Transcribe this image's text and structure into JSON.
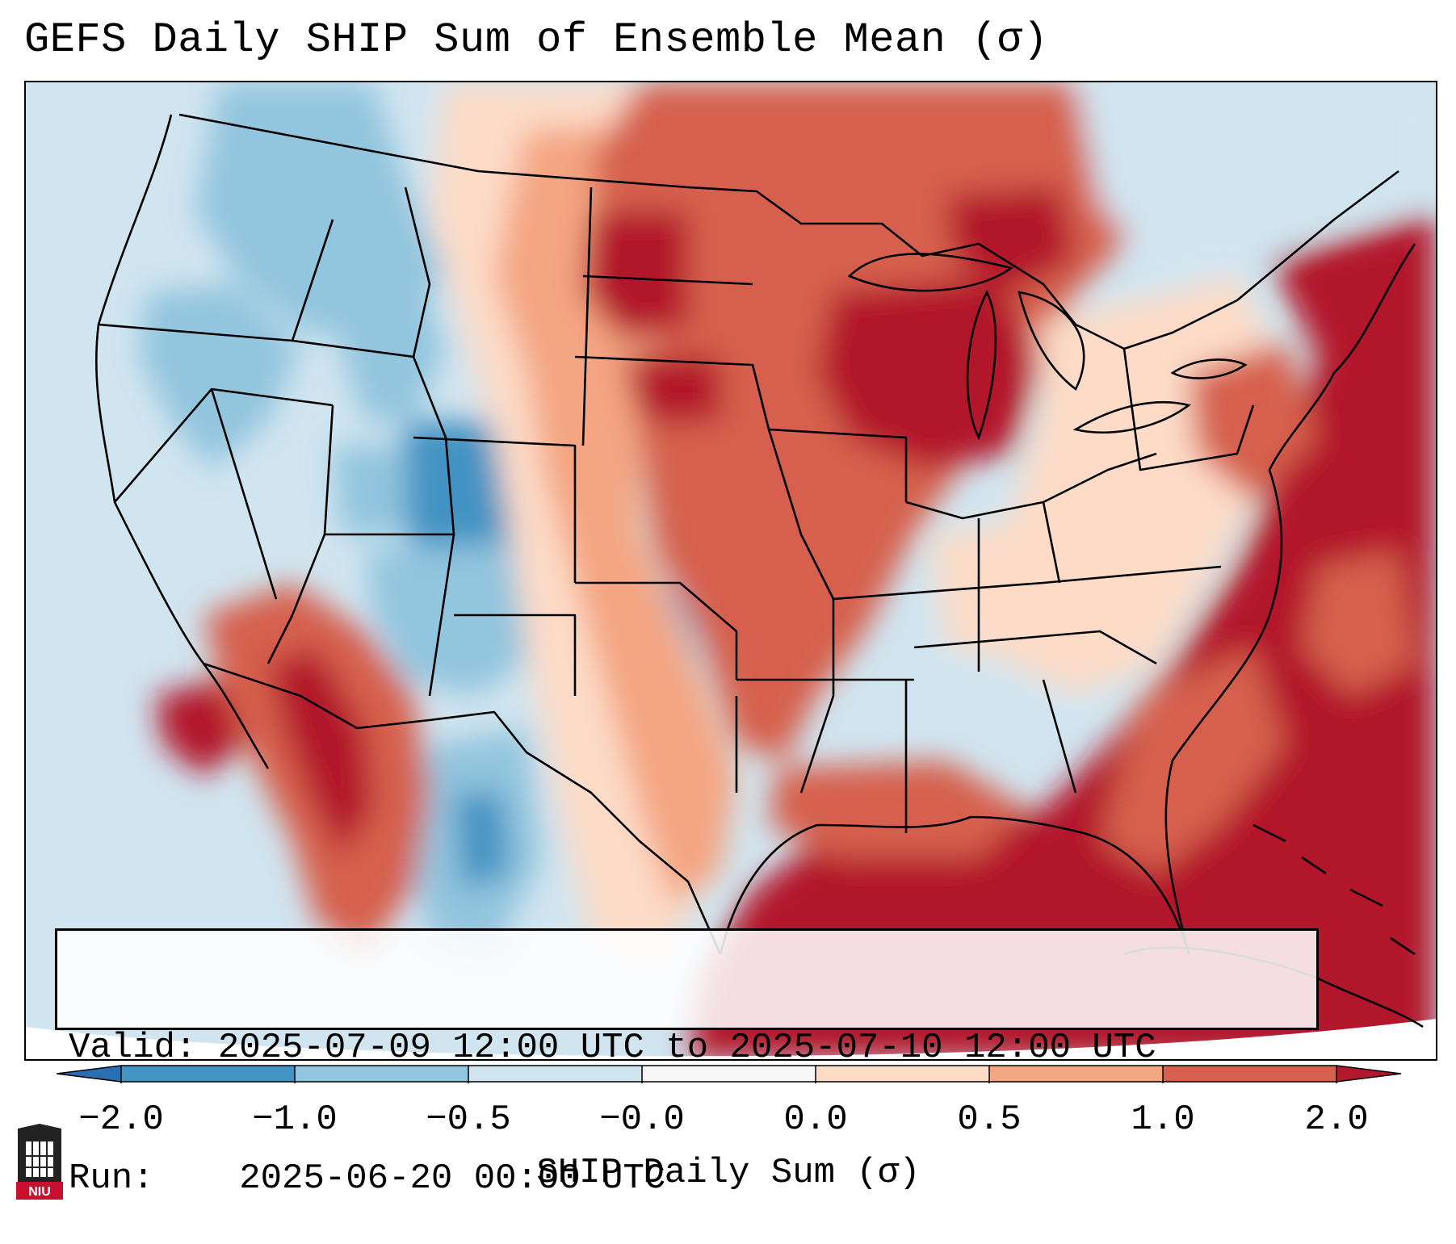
{
  "title": "GEFS Daily SHIP Sum of Ensemble Mean (σ)",
  "info": {
    "valid_label": "Valid:",
    "valid_value": "2025-07-09 12:00 UTC to 2025-07-10 12:00 UTC",
    "run_label": "Run:",
    "run_value": "2025-06-20 00:00 UTC"
  },
  "colorbar": {
    "title": "SHIP Daily Sum (σ)",
    "tick_labels": [
      "−2.0",
      "−1.0",
      "−0.5",
      "−0.0",
      "0.0",
      "0.5",
      "1.0",
      "2.0"
    ],
    "bins": [
      {
        "range": "< -2.0",
        "color": "#2b6fb3"
      },
      {
        "range": "-2.0 to -1.0",
        "color": "#4393c3"
      },
      {
        "range": "-1.0 to -0.5",
        "color": "#92c5de"
      },
      {
        "range": "-0.5 to -0.0",
        "color": "#d1e5f0"
      },
      {
        "range": "-0.0 to 0.0",
        "color": "#f7f7f7"
      },
      {
        "range": "0.0 to 0.5",
        "color": "#fddbc7"
      },
      {
        "range": "0.5 to 1.0",
        "color": "#f4a582"
      },
      {
        "range": "1.0 to 2.0",
        "color": "#d6604d"
      },
      {
        "range": "> 2.0",
        "color": "#b2182b"
      }
    ]
  },
  "map": {
    "region": "Continental United States",
    "pattern": "Negative (blue) anomalies over the western US and Rockies; positive (red) anomalies over the central, eastern US, Great Lakes, Gulf of Mexico and Atlantic."
  },
  "logo": {
    "text": "NIU",
    "icon": "university-building-icon"
  }
}
